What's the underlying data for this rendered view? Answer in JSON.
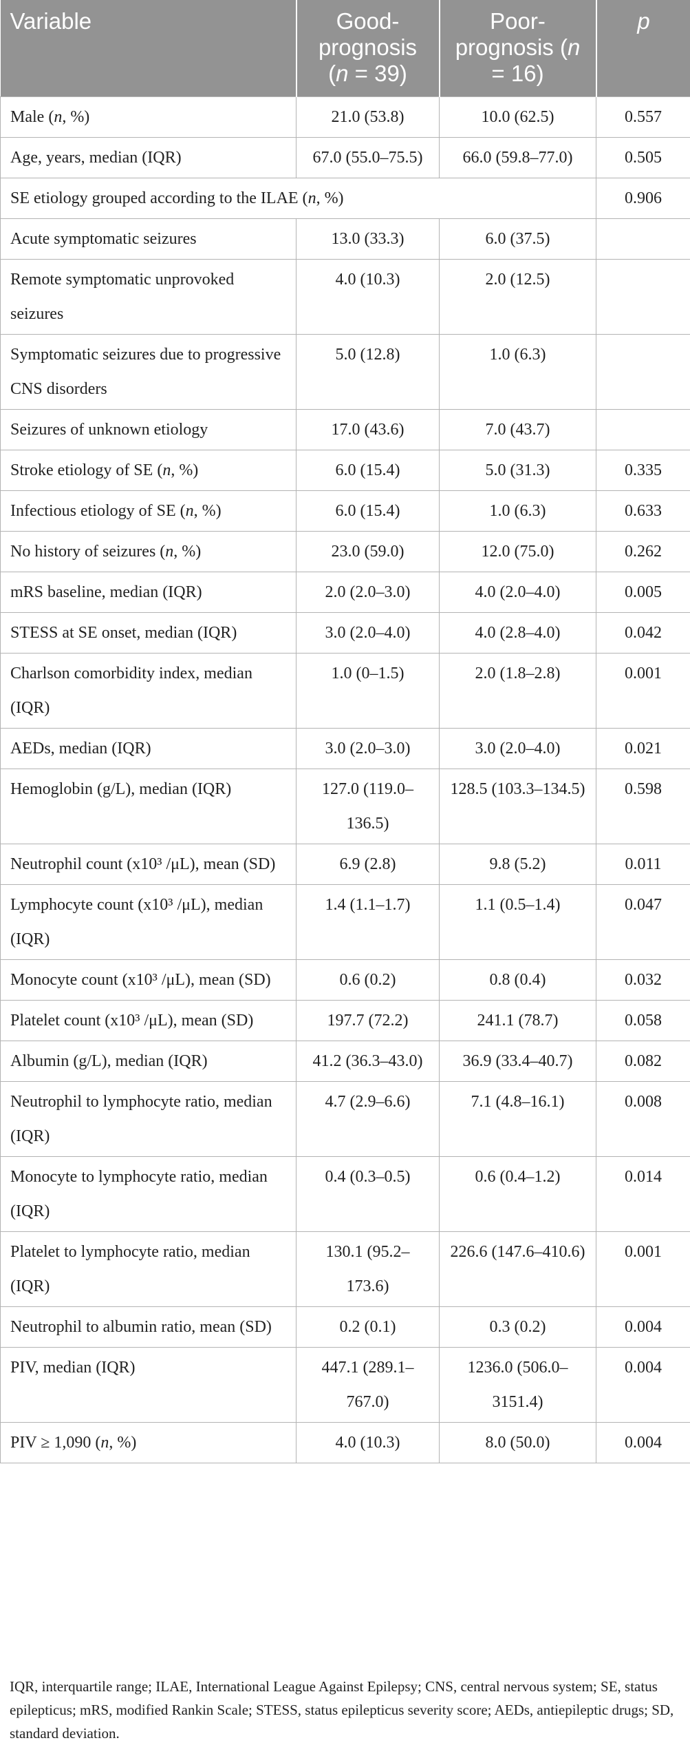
{
  "table": {
    "headers": [
      "Variable",
      "Good-prognosis (n = 39)",
      "Poor-prognosis (n = 16)",
      "p"
    ],
    "rows": [
      [
        "Male (n, %)",
        "21.0 (53.8)",
        "10.0 (62.5)",
        "0.557"
      ],
      [
        "Age, years, median (IQR)",
        "67.0 (55.0–75.5)",
        "66.0 (59.8–77.0)",
        "0.505"
      ],
      [
        "SE etiology grouped according to the ILAE (n, %)",
        "",
        "",
        "0.906"
      ],
      [
        "Acute symptomatic seizures",
        "13.0 (33.3)",
        "6.0 (37.5)",
        ""
      ],
      [
        "Remote symptomatic unprovoked seizures",
        "4.0 (10.3)",
        "2.0 (12.5)",
        ""
      ],
      [
        "Symptomatic seizures due to progressive CNS disorders",
        "5.0 (12.8)",
        "1.0 (6.3)",
        ""
      ],
      [
        "Seizures of unknown etiology",
        "17.0 (43.6)",
        "7.0 (43.7)",
        ""
      ],
      [
        "Stroke etiology of SE (n, %)",
        "6.0 (15.4)",
        "5.0 (31.3)",
        "0.335"
      ],
      [
        "Infectious etiology of SE (n, %)",
        "6.0 (15.4)",
        "1.0 (6.3)",
        "0.633"
      ],
      [
        "No history of seizures (n, %)",
        "23.0 (59.0)",
        "12.0 (75.0)",
        "0.262"
      ],
      [
        "mRS baseline, median (IQR)",
        "2.0 (2.0–3.0)",
        "4.0 (2.0–4.0)",
        "0.005"
      ],
      [
        "STESS at SE onset, median (IQR)",
        "3.0 (2.0–4.0)",
        "4.0 (2.8–4.0)",
        "0.042"
      ],
      [
        "Charlson comorbidity index, median (IQR)",
        "1.0 (0–1.5)",
        "2.0 (1.8–2.8)",
        "0.001"
      ],
      [
        "AEDs, median (IQR)",
        "3.0 (2.0–3.0)",
        "3.0 (2.0–4.0)",
        "0.021"
      ],
      [
        "Hemoglobin (g/L), median (IQR)",
        "127.0 (119.0–136.5)",
        "128.5 (103.3–134.5)",
        "0.598"
      ],
      [
        "Neutrophil count (x10³ /μL), mean (SD)",
        "6.9 (2.8)",
        "9.8 (5.2)",
        "0.011"
      ],
      [
        "Lymphocyte count (x10³ /μL), median (IQR)",
        "1.4 (1.1–1.7)",
        "1.1 (0.5–1.4)",
        "0.047"
      ],
      [
        "Monocyte count (x10³ /μL), mean (SD)",
        "0.6 (0.2)",
        "0.8 (0.4)",
        "0.032"
      ],
      [
        "Platelet count (x10³ /μL), mean (SD)",
        "197.7 (72.2)",
        "241.1 (78.7)",
        "0.058"
      ],
      [
        "Albumin (g/L), median (IQR)",
        "41.2 (36.3–43.0)",
        "36.9 (33.4–40.7)",
        "0.082"
      ],
      [
        "Neutrophil to lymphocyte ratio, median (IQR)",
        "4.7 (2.9–6.6)",
        "7.1 (4.8–16.1)",
        "0.008"
      ],
      [
        "Monocyte to lymphocyte ratio, median (IQR)",
        "0.4 (0.3–0.5)",
        "0.6 (0.4–1.2)",
        "0.014"
      ],
      [
        "Platelet to lymphocyte ratio, median (IQR)",
        "130.1 (95.2–173.6)",
        "226.6 (147.6–410.6)",
        "0.001"
      ],
      [
        "Neutrophil to albumin ratio, mean (SD)",
        "0.2 (0.1)",
        "0.3 (0.2)",
        "0.004"
      ],
      [
        "PIV, median (IQR)",
        "447.1 (289.1–767.0)",
        "1236.0 (506.0–3151.4)",
        "0.004"
      ],
      [
        "PIV ≥ 1,090 (n, %)",
        "4.0 (10.3)",
        "8.0 (50.0)",
        "0.004"
      ]
    ]
  },
  "footnote": "IQR, interquartile range; ILAE, International League Against Epilepsy; CNS, central nervous system; SE, status epilepticus; mRS, modified Rankin Scale; STESS, status epilepticus severity score; AEDs, antiepileptic drugs; SD, standard deviation.",
  "colors": {
    "header_bg": "#939393",
    "header_text": "#ffffff",
    "grid": "#b3b3b3",
    "text": "#222222"
  }
}
